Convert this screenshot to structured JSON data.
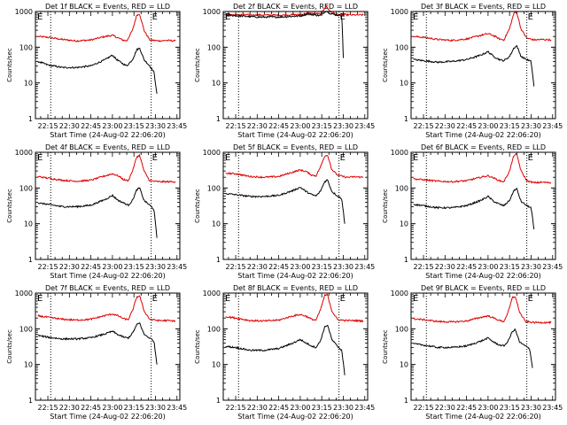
{
  "figure": {
    "colors": {
      "events": "#000000",
      "lld": "#e00000",
      "axes": "#000000",
      "marker": "#000000"
    },
    "yticks": [
      1,
      10,
      100,
      1000
    ],
    "yticklabels": [
      "1",
      "10",
      "100",
      "1000"
    ],
    "xticks": [
      "22:15",
      "22:30",
      "22:45",
      "23:00",
      "23:15",
      "23:30",
      "23:45"
    ],
    "ylabel": "Counts/sec",
    "xlabel": "Start Time (24-Aug-02 22:06:20)",
    "marker_glyphs": [
      "E",
      "E"
    ]
  },
  "chart_data": [
    {
      "type": "line",
      "title": "Det 1f BLACK = Events, RED = LLD",
      "xlabel": "Start Time (24-Aug-02 22:06:20)",
      "ylabel": "Counts/sec",
      "yscale": "log",
      "ylim": [
        1,
        1000
      ],
      "xlim": [
        "22:06:20",
        "23:47:00"
      ],
      "xticks": [
        "22:15",
        "22:30",
        "22:45",
        "23:00",
        "23:15",
        "23:30",
        "23:45"
      ],
      "vlines": [
        "22:17",
        "23:27"
      ],
      "series": [
        {
          "name": "LLD",
          "color": "red",
          "x": [
            "22:08",
            "22:15",
            "22:25",
            "22:35",
            "22:45",
            "22:55",
            "23:00",
            "23:03",
            "23:07",
            "23:10",
            "23:14",
            "23:17",
            "23:19",
            "23:22",
            "23:26",
            "23:32",
            "23:38",
            "23:44"
          ],
          "values": [
            200,
            190,
            165,
            150,
            160,
            200,
            215,
            190,
            160,
            150,
            300,
            800,
            850,
            300,
            160,
            150,
            155,
            150
          ]
        },
        {
          "name": "Events",
          "color": "black",
          "x": [
            "22:08",
            "22:15",
            "22:25",
            "22:35",
            "22:45",
            "22:55",
            "23:00",
            "23:03",
            "23:07",
            "23:10",
            "23:14",
            "23:17",
            "23:19",
            "23:22",
            "23:26",
            "23:29",
            "23:31"
          ],
          "values": [
            40,
            32,
            27,
            27,
            30,
            45,
            60,
            45,
            35,
            30,
            45,
            85,
            95,
            45,
            30,
            20,
            5
          ]
        }
      ]
    },
    {
      "type": "line",
      "title": "Det 2f BLACK = Events, RED = LLD",
      "xlabel": "Start Time (24-Aug-02 22:06:20)",
      "ylabel": "Counts/sec",
      "yscale": "log",
      "ylim": [
        1,
        1000
      ],
      "xlim": [
        "22:06:20",
        "23:47:00"
      ],
      "xticks": [
        "22:15",
        "22:30",
        "22:45",
        "23:00",
        "23:15",
        "23:30",
        "23:45"
      ],
      "vlines": [
        "22:17",
        "23:27"
      ],
      "series": [
        {
          "name": "LLD",
          "color": "red",
          "x": [
            "22:08",
            "22:15",
            "22:30",
            "22:45",
            "23:00",
            "23:05",
            "23:10",
            "23:14",
            "23:18",
            "23:21",
            "23:25",
            "23:35",
            "23:44"
          ],
          "values": [
            820,
            810,
            800,
            790,
            820,
            900,
            870,
            850,
            1400,
            1000,
            830,
            800,
            800
          ]
        },
        {
          "name": "Events",
          "color": "black",
          "x": [
            "22:08",
            "22:15",
            "22:30",
            "22:45",
            "23:00",
            "23:05",
            "23:10",
            "23:14",
            "23:18",
            "23:21",
            "23:25",
            "23:29",
            "23:30"
          ],
          "values": [
            800,
            760,
            700,
            700,
            750,
            850,
            800,
            770,
            1050,
            880,
            800,
            780,
            50
          ]
        }
      ]
    },
    {
      "type": "line",
      "title": "Det 3f BLACK = Events, RED = LLD",
      "xlabel": "Start Time (24-Aug-02 22:06:20)",
      "ylabel": "Counts/sec",
      "yscale": "log",
      "ylim": [
        1,
        1000
      ],
      "xlim": [
        "22:06:20",
        "23:47:00"
      ],
      "xticks": [
        "22:15",
        "22:30",
        "22:45",
        "23:00",
        "23:15",
        "23:30",
        "23:45"
      ],
      "vlines": [
        "22:17",
        "23:27"
      ],
      "series": [
        {
          "name": "LLD",
          "color": "red",
          "x": [
            "22:08",
            "22:15",
            "22:25",
            "22:35",
            "22:45",
            "22:55",
            "23:00",
            "23:04",
            "23:08",
            "23:11",
            "23:15",
            "23:18",
            "23:20",
            "23:23",
            "23:27",
            "23:32",
            "23:38",
            "23:44"
          ],
          "values": [
            200,
            190,
            165,
            155,
            170,
            215,
            240,
            210,
            170,
            160,
            330,
            900,
            950,
            320,
            180,
            160,
            165,
            160
          ]
        },
        {
          "name": "Events",
          "color": "black",
          "x": [
            "22:08",
            "22:15",
            "22:25",
            "22:35",
            "22:45",
            "22:55",
            "23:00",
            "23:04",
            "23:08",
            "23:11",
            "23:15",
            "23:18",
            "23:20",
            "23:23",
            "23:27",
            "23:30",
            "23:32"
          ],
          "values": [
            45,
            42,
            38,
            40,
            45,
            60,
            75,
            55,
            45,
            42,
            55,
            95,
            110,
            55,
            45,
            40,
            8
          ]
        }
      ]
    },
    {
      "type": "line",
      "title": "Det 4f BLACK = Events, RED = LLD",
      "xlabel": "Start Time (24-Aug-02 22:06:20)",
      "ylabel": "Counts/sec",
      "yscale": "log",
      "ylim": [
        1,
        1000
      ],
      "xlim": [
        "22:06:20",
        "23:47:00"
      ],
      "xticks": [
        "22:15",
        "22:30",
        "22:45",
        "23:00",
        "23:15",
        "23:30",
        "23:45"
      ],
      "vlines": [
        "22:17",
        "23:27"
      ],
      "series": [
        {
          "name": "LLD",
          "color": "red",
          "x": [
            "22:08",
            "22:15",
            "22:25",
            "22:35",
            "22:45",
            "22:55",
            "23:00",
            "23:04",
            "23:08",
            "23:11",
            "23:14",
            "23:17",
            "23:19",
            "23:22",
            "23:26",
            "23:32",
            "23:38",
            "23:44"
          ],
          "values": [
            210,
            190,
            165,
            155,
            165,
            220,
            250,
            220,
            170,
            160,
            300,
            750,
            820,
            300,
            160,
            150,
            150,
            150
          ]
        },
        {
          "name": "Events",
          "color": "black",
          "x": [
            "22:08",
            "22:15",
            "22:25",
            "22:35",
            "22:45",
            "22:55",
            "23:00",
            "23:04",
            "23:08",
            "23:11",
            "23:14",
            "23:17",
            "23:19",
            "23:22",
            "23:26",
            "23:29",
            "23:31"
          ],
          "values": [
            38,
            35,
            30,
            30,
            33,
            48,
            62,
            45,
            38,
            33,
            45,
            90,
            100,
            45,
            33,
            25,
            4
          ]
        }
      ]
    },
    {
      "type": "line",
      "title": "Det 5f BLACK = Events, RED = LLD",
      "xlabel": "Start Time (24-Aug-02 22:06:20)",
      "ylabel": "Counts/sec",
      "yscale": "log",
      "ylim": [
        1,
        1000
      ],
      "xlim": [
        "22:06:20",
        "23:47:00"
      ],
      "xticks": [
        "22:15",
        "22:30",
        "22:45",
        "23:00",
        "23:15",
        "23:30",
        "23:45"
      ],
      "vlines": [
        "22:17",
        "23:27"
      ],
      "series": [
        {
          "name": "LLD",
          "color": "red",
          "x": [
            "22:08",
            "22:15",
            "22:25",
            "22:35",
            "22:45",
            "22:55",
            "23:00",
            "23:04",
            "23:08",
            "23:11",
            "23:14",
            "23:17",
            "23:19",
            "23:22",
            "23:26",
            "23:32",
            "23:38",
            "23:44"
          ],
          "values": [
            260,
            250,
            210,
            200,
            210,
            280,
            320,
            290,
            230,
            220,
            380,
            780,
            850,
            330,
            230,
            200,
            205,
            200
          ]
        },
        {
          "name": "Events",
          "color": "black",
          "x": [
            "22:08",
            "22:15",
            "22:25",
            "22:35",
            "22:45",
            "22:55",
            "23:00",
            "23:04",
            "23:08",
            "23:11",
            "23:14",
            "23:17",
            "23:19",
            "23:22",
            "23:26",
            "23:29",
            "23:31"
          ],
          "values": [
            70,
            65,
            58,
            58,
            62,
            85,
            105,
            80,
            65,
            60,
            80,
            150,
            170,
            80,
            60,
            50,
            10
          ]
        }
      ]
    },
    {
      "type": "line",
      "title": "Det 6f BLACK = Events, RED = LLD",
      "xlabel": "Start Time (24-Aug-02 22:06:20)",
      "ylabel": "Counts/sec",
      "yscale": "log",
      "ylim": [
        1,
        1000
      ],
      "xlim": [
        "22:06:20",
        "23:47:00"
      ],
      "xticks": [
        "22:15",
        "22:30",
        "22:45",
        "23:00",
        "23:15",
        "23:30",
        "23:45"
      ],
      "vlines": [
        "22:17",
        "23:27"
      ],
      "series": [
        {
          "name": "LLD",
          "color": "red",
          "x": [
            "22:08",
            "22:15",
            "22:25",
            "22:35",
            "22:45",
            "22:55",
            "23:00",
            "23:04",
            "23:08",
            "23:11",
            "23:15",
            "23:18",
            "23:20",
            "23:23",
            "23:27",
            "23:32",
            "23:38",
            "23:44"
          ],
          "values": [
            180,
            170,
            155,
            150,
            160,
            200,
            220,
            190,
            160,
            150,
            300,
            820,
            880,
            300,
            160,
            140,
            145,
            140
          ]
        },
        {
          "name": "Events",
          "color": "black",
          "x": [
            "22:08",
            "22:15",
            "22:25",
            "22:35",
            "22:45",
            "22:55",
            "23:00",
            "23:04",
            "23:08",
            "23:11",
            "23:15",
            "23:18",
            "23:20",
            "23:23",
            "23:27",
            "23:30",
            "23:32"
          ],
          "values": [
            35,
            32,
            28,
            28,
            32,
            45,
            58,
            42,
            35,
            32,
            45,
            85,
            95,
            42,
            32,
            28,
            7
          ]
        }
      ]
    },
    {
      "type": "line",
      "title": "Det 7f BLACK = Events, RED = LLD",
      "xlabel": "Start Time (24-Aug-02 22:06:20)",
      "ylabel": "Counts/sec",
      "yscale": "log",
      "ylim": [
        1,
        1000
      ],
      "xlim": [
        "22:06:20",
        "23:47:00"
      ],
      "xticks": [
        "22:15",
        "22:30",
        "22:45",
        "23:00",
        "23:15",
        "23:30",
        "23:45"
      ],
      "vlines": [
        "22:17",
        "23:27"
      ],
      "series": [
        {
          "name": "LLD",
          "color": "red",
          "x": [
            "22:08",
            "22:15",
            "22:25",
            "22:35",
            "22:45",
            "22:55",
            "23:00",
            "23:04",
            "23:08",
            "23:11",
            "23:14",
            "23:17",
            "23:19",
            "23:22",
            "23:26",
            "23:32",
            "23:38",
            "23:44"
          ],
          "values": [
            230,
            210,
            185,
            175,
            185,
            235,
            260,
            230,
            190,
            180,
            320,
            780,
            830,
            320,
            185,
            170,
            170,
            165
          ]
        },
        {
          "name": "Events",
          "color": "black",
          "x": [
            "22:08",
            "22:15",
            "22:25",
            "22:35",
            "22:45",
            "22:55",
            "23:00",
            "23:04",
            "23:08",
            "23:11",
            "23:14",
            "23:17",
            "23:19",
            "23:22",
            "23:26",
            "23:29",
            "23:31"
          ],
          "values": [
            65,
            58,
            52,
            52,
            56,
            72,
            85,
            68,
            58,
            55,
            75,
            130,
            145,
            70,
            55,
            45,
            10
          ]
        }
      ]
    },
    {
      "type": "line",
      "title": "Det 8f BLACK = Events, RED = LLD",
      "xlabel": "Start Time (24-Aug-02 22:06:20)",
      "ylabel": "Counts/sec",
      "yscale": "log",
      "ylim": [
        1,
        1000
      ],
      "xlim": [
        "22:06:20",
        "23:47:00"
      ],
      "xticks": [
        "22:15",
        "22:30",
        "22:45",
        "23:00",
        "23:15",
        "23:30",
        "23:45"
      ],
      "vlines": [
        "22:17",
        "23:27"
      ],
      "series": [
        {
          "name": "LLD",
          "color": "red",
          "x": [
            "22:08",
            "22:15",
            "22:25",
            "22:35",
            "22:45",
            "22:55",
            "23:00",
            "23:04",
            "23:08",
            "23:11",
            "23:14",
            "23:17",
            "23:19",
            "23:22",
            "23:26",
            "23:32",
            "23:38",
            "23:44"
          ],
          "values": [
            220,
            200,
            170,
            165,
            175,
            230,
            250,
            225,
            185,
            175,
            330,
            850,
            900,
            320,
            180,
            170,
            170,
            165
          ]
        },
        {
          "name": "Events",
          "color": "black",
          "x": [
            "22:08",
            "22:15",
            "22:25",
            "22:35",
            "22:45",
            "22:55",
            "23:00",
            "23:04",
            "23:08",
            "23:11",
            "23:14",
            "23:17",
            "23:19",
            "23:22",
            "23:26",
            "23:29",
            "23:31"
          ],
          "values": [
            32,
            30,
            25,
            25,
            28,
            40,
            50,
            40,
            33,
            30,
            45,
            110,
            130,
            50,
            32,
            25,
            5
          ]
        }
      ]
    },
    {
      "type": "line",
      "title": "Det 9f BLACK = Events, RED = LLD",
      "xlabel": "Start Time (24-Aug-02 22:06:20)",
      "ylabel": "Counts/sec",
      "yscale": "log",
      "ylim": [
        1,
        1000
      ],
      "xlim": [
        "22:06:20",
        "23:47:00"
      ],
      "xticks": [
        "22:15",
        "22:30",
        "22:45",
        "23:00",
        "23:15",
        "23:30",
        "23:45"
      ],
      "vlines": [
        "22:17",
        "23:27"
      ],
      "series": [
        {
          "name": "LLD",
          "color": "red",
          "x": [
            "22:08",
            "22:15",
            "22:25",
            "22:35",
            "22:45",
            "22:55",
            "23:00",
            "23:04",
            "23:08",
            "23:11",
            "23:14",
            "23:17",
            "23:19",
            "23:22",
            "23:26",
            "23:32",
            "23:38",
            "23:44"
          ],
          "values": [
            190,
            180,
            160,
            155,
            165,
            210,
            230,
            200,
            170,
            160,
            290,
            750,
            800,
            290,
            160,
            150,
            150,
            150
          ]
        },
        {
          "name": "Events",
          "color": "black",
          "x": [
            "22:08",
            "22:15",
            "22:25",
            "22:35",
            "22:45",
            "22:55",
            "23:00",
            "23:04",
            "23:08",
            "23:11",
            "23:14",
            "23:17",
            "23:19",
            "23:22",
            "23:26",
            "23:29",
            "23:31"
          ],
          "values": [
            38,
            35,
            30,
            30,
            33,
            45,
            55,
            42,
            35,
            33,
            45,
            85,
            95,
            42,
            33,
            28,
            8
          ]
        }
      ]
    }
  ]
}
